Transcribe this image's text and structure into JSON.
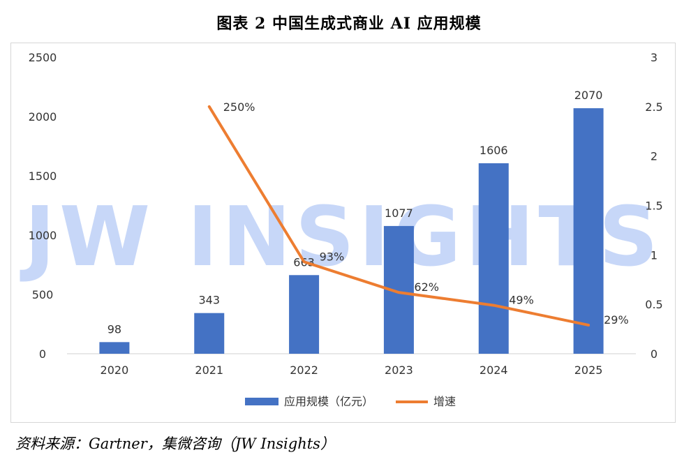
{
  "title": "图表 2 中国生成式商业 AI 应用规模",
  "source": "资料来源：Gartner，集微咨询（JW Insights）",
  "watermark": "JW INSIGHTS",
  "colors": {
    "bar": "#4472C4",
    "line": "#ED7D31",
    "watermark": "#8fb0f2"
  },
  "chart_data": {
    "type": "bar",
    "categories": [
      "2020",
      "2021",
      "2022",
      "2023",
      "2024",
      "2025"
    ],
    "series": [
      {
        "name": "应用规模（亿元）",
        "type": "bar",
        "axis": "left",
        "values": [
          98,
          343,
          663,
          1077,
          1606,
          2070
        ],
        "labels": [
          "98",
          "343",
          "663",
          "1077",
          "1606",
          "2070"
        ]
      },
      {
        "name": "增速",
        "type": "line",
        "axis": "right",
        "x": [
          "2021",
          "2022",
          "2023",
          "2024",
          "2025"
        ],
        "values": [
          2.5,
          0.93,
          0.62,
          0.49,
          0.29
        ],
        "labels": [
          "250%",
          "93%",
          "62%",
          "49%",
          "29%"
        ]
      }
    ],
    "y_left": {
      "ylim": [
        0,
        2500
      ],
      "ticks": [
        "0",
        "500",
        "1000",
        "1500",
        "2000",
        "2500"
      ]
    },
    "y_right": {
      "ylim": [
        0,
        3
      ],
      "ticks": [
        "0",
        "0.5",
        "1",
        "1.5",
        "2",
        "2.5",
        "3"
      ]
    },
    "grid": false,
    "legend_position": "bottom-center"
  }
}
